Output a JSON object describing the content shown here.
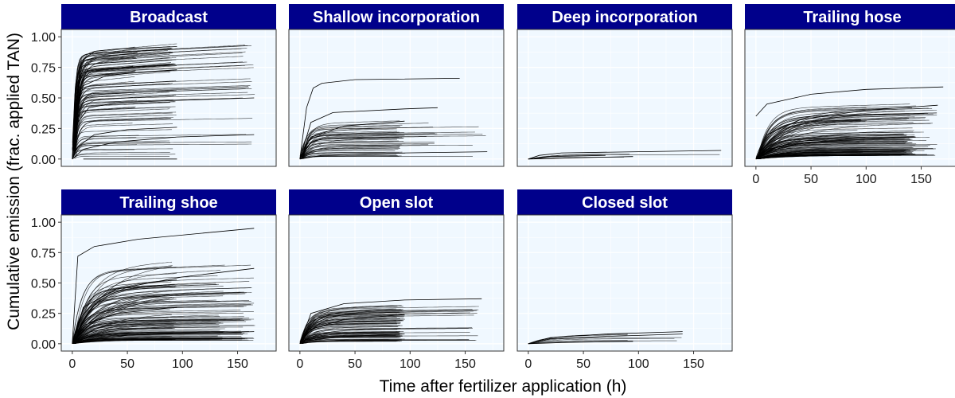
{
  "chart_data": {
    "type": "line",
    "xlabel": "Time after fertilizer application (h)",
    "ylabel": "Cumulative emission (frac. applied TAN)",
    "xlim": [
      -10,
      185
    ],
    "ylim": [
      -0.06,
      1.06
    ],
    "x_ticks": [
      0,
      50,
      100,
      150
    ],
    "y_ticks": [
      0.0,
      0.25,
      0.5,
      0.75,
      1.0
    ],
    "y_tick_labels": [
      "0.00",
      "0.25",
      "0.50",
      "0.75",
      "1.00"
    ],
    "x_tick_labels": [
      "0",
      "50",
      "100",
      "150"
    ],
    "grid": true,
    "colors": {
      "strip": "#00008B",
      "panel": "#F0F8FF",
      "grid": "#ffffff",
      "line": "#000000"
    },
    "panels": [
      {
        "title": "Broadcast",
        "example_series": [
          {
            "x": [
              0,
              3,
              8,
              20,
              40,
              95
            ],
            "y": [
              0,
              0.6,
              0.8,
              0.88,
              0.9,
              0.92
            ]
          },
          {
            "x": [
              0,
              4,
              10,
              30,
              60,
              95
            ],
            "y": [
              0,
              0.4,
              0.6,
              0.68,
              0.71,
              0.73
            ]
          },
          {
            "x": [
              0,
              5,
              15,
              40,
              95,
              165
            ],
            "y": [
              0,
              0.3,
              0.42,
              0.46,
              0.48,
              0.5
            ]
          },
          {
            "x": [
              0,
              5,
              20,
              50,
              95
            ],
            "y": [
              0,
              0.1,
              0.2,
              0.24,
              0.26
            ]
          },
          {
            "x": [
              0,
              10,
              40,
              95,
              165
            ],
            "y": [
              0,
              0.08,
              0.14,
              0.18,
              0.2
            ]
          },
          {
            "x": [
              10,
              95
            ],
            "y": [
              0,
              0
            ]
          }
        ]
      },
      {
        "title": "Shallow incorporation",
        "example_series": [
          {
            "x": [
              0,
              6,
              12,
              20,
              50,
              145
            ],
            "y": [
              0,
              0.42,
              0.58,
              0.62,
              0.65,
              0.66
            ]
          },
          {
            "x": [
              0,
              10,
              30,
              95,
              125
            ],
            "y": [
              0,
              0.3,
              0.38,
              0.41,
              0.42
            ]
          },
          {
            "x": [
              0,
              10,
              40,
              95
            ],
            "y": [
              0,
              0.18,
              0.27,
              0.31
            ]
          },
          {
            "x": [
              0,
              20,
              95,
              170
            ],
            "y": [
              0,
              0.03,
              0.05,
              0.06
            ]
          }
        ]
      },
      {
        "title": "Deep incorporation",
        "example_series": [
          {
            "x": [
              0,
              10,
              30,
              100,
              175
            ],
            "y": [
              0,
              0.03,
              0.05,
              0.06,
              0.07
            ]
          },
          {
            "x": [
              0,
              20,
              70
            ],
            "y": [
              0,
              0.02,
              0.03
            ]
          },
          {
            "x": [
              0,
              40,
              95
            ],
            "y": [
              0,
              0.01,
              0.02
            ]
          }
        ]
      },
      {
        "title": "Trailing hose",
        "example_series": [
          {
            "x": [
              0,
              10,
              50,
              100,
              170
            ],
            "y": [
              0.35,
              0.45,
              0.53,
              0.57,
              0.59
            ]
          },
          {
            "x": [
              0,
              10,
              40,
              100,
              165
            ],
            "y": [
              0,
              0.2,
              0.32,
              0.4,
              0.44
            ]
          },
          {
            "x": [
              0,
              10,
              50,
              145
            ],
            "y": [
              0,
              0.08,
              0.14,
              0.18
            ]
          },
          {
            "x": [
              0,
              10,
              50,
              145
            ],
            "y": [
              0,
              0.02,
              0.05,
              0.07
            ]
          }
        ]
      },
      {
        "title": "Trailing shoe",
        "example_series": [
          {
            "x": [
              0,
              5,
              20,
              60,
              165
            ],
            "y": [
              0,
              0.72,
              0.8,
              0.86,
              0.95
            ]
          },
          {
            "x": [
              0,
              10,
              40,
              100,
              165
            ],
            "y": [
              0,
              0.3,
              0.45,
              0.55,
              0.62
            ]
          },
          {
            "x": [
              0,
              10,
              40,
              95
            ],
            "y": [
              0,
              0.15,
              0.25,
              0.3
            ]
          },
          {
            "x": [
              0,
              10,
              50,
              165
            ],
            "y": [
              0,
              0.03,
              0.07,
              0.1
            ]
          }
        ]
      },
      {
        "title": "Open slot",
        "example_series": [
          {
            "x": [
              0,
              10,
              40,
              95,
              165
            ],
            "y": [
              0,
              0.25,
              0.33,
              0.36,
              0.37
            ]
          },
          {
            "x": [
              0,
              10,
              40,
              95
            ],
            "y": [
              0,
              0.12,
              0.2,
              0.24
            ]
          },
          {
            "x": [
              0,
              10,
              40,
              95
            ],
            "y": [
              0,
              0.03,
              0.06,
              0.08
            ]
          }
        ]
      },
      {
        "title": "Closed slot",
        "example_series": [
          {
            "x": [
              0,
              20,
              70,
              140
            ],
            "y": [
              0,
              0.05,
              0.08,
              0.1
            ]
          },
          {
            "x": [
              0,
              20,
              70,
              140
            ],
            "y": [
              0,
              0.04,
              0.06,
              0.08
            ]
          },
          {
            "x": [
              0,
              30,
              95
            ],
            "y": [
              0,
              0.01,
              0.02
            ]
          }
        ]
      }
    ]
  }
}
